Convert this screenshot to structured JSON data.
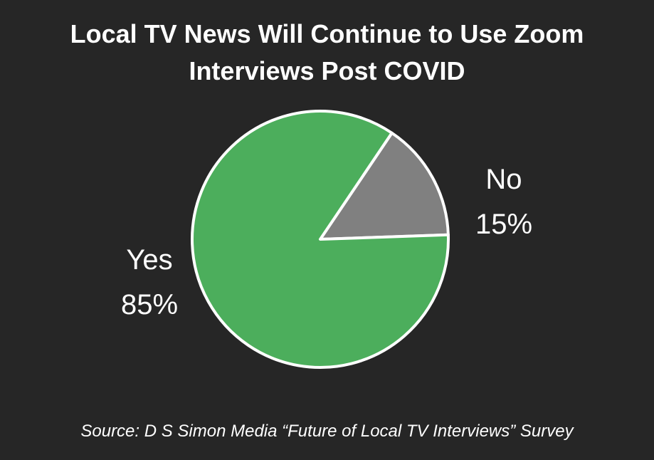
{
  "chart_data": {
    "type": "pie",
    "title_lines": [
      "Local TV News Will Continue to Use Zoom",
      "Interviews Post COVID"
    ],
    "slices": [
      {
        "label": "No",
        "value": 15,
        "value_label": "15%",
        "color": "#808080"
      },
      {
        "label": "Yes",
        "value": 85,
        "value_label": "85%",
        "color": "#4cae5c"
      }
    ],
    "source": "Source: D S Simon Media “Future of Local TV Interviews” Survey"
  },
  "colors": {
    "background": "#262626",
    "slice_border": "#ffffff",
    "text": "#ffffff"
  }
}
